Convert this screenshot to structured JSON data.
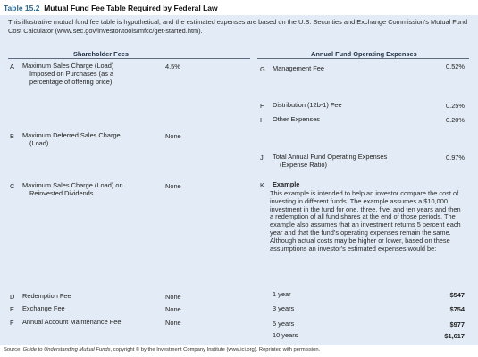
{
  "title": {
    "number": "Table 15.2",
    "text": "Mutual Fund Fee Table Required by Federal Law"
  },
  "intro": "This illustrative mutual fund fee table is hypothetical, and the estimated expenses are based on the U.S. Securities and Exchange Commission's Mutual Fund Cost Calculator (www.sec.gov/investor/tools/mfcc/get-started.htm).",
  "headers": {
    "left": "Shareholder Fees",
    "right": "Annual Fund Operating Expenses"
  },
  "left_rows": [
    {
      "letter": "A",
      "label": "Maximum Sales Charge (Load)",
      "sub": [
        "Imposed on Purchases (as a",
        "percentage of offering price)"
      ],
      "value": "4.5%"
    },
    {
      "letter": "B",
      "label": "Maximum Deferred Sales Charge",
      "sub": [
        "(Load)"
      ],
      "value": "None"
    },
    {
      "letter": "C",
      "label": "Maximum Sales Charge (Load) on",
      "sub": [
        "Reinvested Dividends"
      ],
      "value": "None"
    },
    {
      "letter": "D",
      "label": "Redemption Fee",
      "sub": [],
      "value": "None"
    },
    {
      "letter": "E",
      "label": "Exchange Fee",
      "sub": [],
      "value": "None"
    },
    {
      "letter": "F",
      "label": "Annual Account Maintenance Fee",
      "sub": [],
      "value": "None"
    }
  ],
  "right_rows": [
    {
      "letter": "G",
      "label": "Management Fee",
      "sub": [],
      "value": "0.52%"
    },
    {
      "letter": "H",
      "label": "Distribution (12b-1) Fee",
      "sub": [],
      "value": "0.25%"
    },
    {
      "letter": "I",
      "label": "Other Expenses",
      "sub": [],
      "value": "0.20%"
    },
    {
      "letter": "J",
      "label": "Total Annual Fund Operating Expenses",
      "sub": [
        "(Expense Ratio)"
      ],
      "value": "0.97%"
    }
  ],
  "example": {
    "letter": "K",
    "heading": "Example",
    "text": "This example is intended to help an investor compare the cost of investing in different funds. The example assumes a $10,000 investment in the fund for one, three, five, and ten years and then a redemption of all fund shares at the end of those periods. The example also assumes that an investment returns 5 percent each year and that the fund's operating expenses remain the same. Although actual costs may be higher or lower, based on these assumptions an investor's estimated expenses would be:",
    "rows": [
      {
        "period": "1 year",
        "amount": "$547"
      },
      {
        "period": "3 years",
        "amount": "$754"
      },
      {
        "period": "5 years",
        "amount": "$977"
      },
      {
        "period": "10 years",
        "amount": "$1,617"
      }
    ]
  },
  "source": {
    "prefix": "Source: ",
    "title": "Guide to Understanding Mutual Funds",
    "suffix": ", copyright © by the Investment Company Institute (www.ici.org). Reprinted with permission."
  }
}
